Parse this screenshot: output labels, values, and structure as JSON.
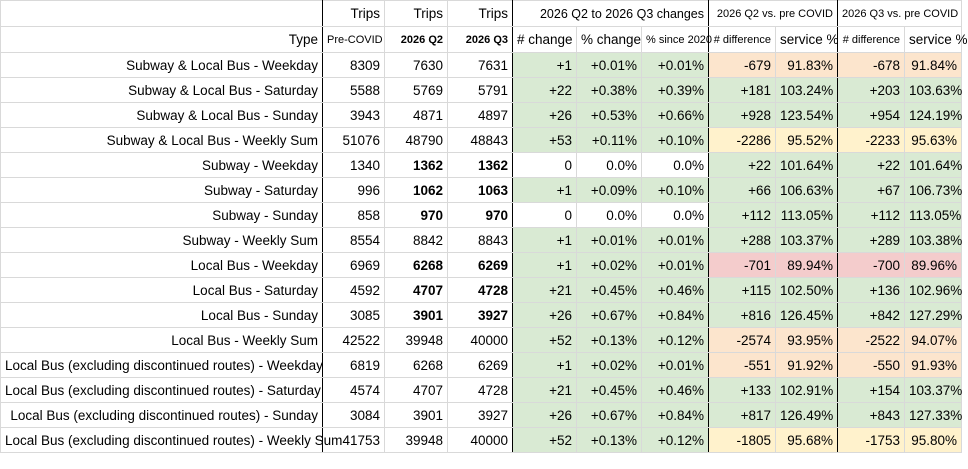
{
  "header": {
    "row1": {
      "trips_a": "Trips",
      "trips_b": "Trips",
      "trips_c": "Trips",
      "changes": "2026 Q2 to 2026 Q3 changes",
      "q2_vs": "2026 Q2 vs. pre COVID",
      "q3_vs": "2026 Q3 vs. pre COVID"
    },
    "row2": {
      "type": "Type",
      "pre": "Pre-COVID",
      "q2": "2026 Q2",
      "q3": "2026 Q3",
      "num_change": "# change",
      "pct_change": "% change",
      "since2020": "% since 2020",
      "q2_diff": "# difference",
      "q2_svc": "service %",
      "q3_diff": "# difference",
      "q3_svc": "service %"
    }
  },
  "colors": {
    "green": "#d9ead3",
    "orange": "#fce5cd",
    "yellow": "#fff2cc",
    "pink": "#f4cccc"
  },
  "rows": [
    {
      "type": "Subway & Local Bus - Weekday",
      "pre": "8309",
      "q2": "7630",
      "q3": "7631",
      "chg": "+1",
      "pct": "+0.01%",
      "s2020": "+0.01%",
      "q2d": "-679",
      "q2s": "91.83%",
      "q3d": "-678",
      "q3s": "91.84%"
    },
    {
      "type": "Subway & Local Bus - Saturday",
      "pre": "5588",
      "q2": "5769",
      "q3": "5791",
      "chg": "+22",
      "pct": "+0.38%",
      "s2020": "+0.39%",
      "q2d": "+181",
      "q2s": "103.24%",
      "q3d": "+203",
      "q3s": "103.63%"
    },
    {
      "type": "Subway & Local Bus - Sunday",
      "pre": "3943",
      "q2": "4871",
      "q3": "4897",
      "chg": "+26",
      "pct": "+0.53%",
      "s2020": "+0.66%",
      "q2d": "+928",
      "q2s": "123.54%",
      "q3d": "+954",
      "q3s": "124.19%"
    },
    {
      "type": "Subway & Local Bus - Weekly Sum",
      "pre": "51076",
      "q2": "48790",
      "q3": "48843",
      "chg": "+53",
      "pct": "+0.11%",
      "s2020": "+0.10%",
      "q2d": "-2286",
      "q2s": "95.52%",
      "q3d": "-2233",
      "q3s": "95.63%"
    },
    {
      "type": "Subway - Weekday",
      "pre": "1340",
      "q2": "1362",
      "q3": "1362",
      "chg": "0",
      "pct": "0.0%",
      "s2020": "0.0%",
      "q2d": "+22",
      "q2s": "101.64%",
      "q3d": "+22",
      "q3s": "101.64%"
    },
    {
      "type": "Subway - Saturday",
      "pre": "996",
      "q2": "1062",
      "q3": "1063",
      "chg": "+1",
      "pct": "+0.09%",
      "s2020": "+0.10%",
      "q2d": "+66",
      "q2s": "106.63%",
      "q3d": "+67",
      "q3s": "106.73%"
    },
    {
      "type": "Subway - Sunday",
      "pre": "858",
      "q2": "970",
      "q3": "970",
      "chg": "0",
      "pct": "0.0%",
      "s2020": "0.0%",
      "q2d": "+112",
      "q2s": "113.05%",
      "q3d": "+112",
      "q3s": "113.05%"
    },
    {
      "type": "Subway - Weekly Sum",
      "pre": "8554",
      "q2": "8842",
      "q3": "8843",
      "chg": "+1",
      "pct": "+0.01%",
      "s2020": "+0.01%",
      "q2d": "+288",
      "q2s": "103.37%",
      "q3d": "+289",
      "q3s": "103.38%"
    },
    {
      "type": "Local Bus - Weekday",
      "pre": "6969",
      "q2": "6268",
      "q3": "6269",
      "chg": "+1",
      "pct": "+0.02%",
      "s2020": "+0.01%",
      "q2d": "-701",
      "q2s": "89.94%",
      "q3d": "-700",
      "q3s": "89.96%"
    },
    {
      "type": "Local Bus - Saturday",
      "pre": "4592",
      "q2": "4707",
      "q3": "4728",
      "chg": "+21",
      "pct": "+0.45%",
      "s2020": "+0.46%",
      "q2d": "+115",
      "q2s": "102.50%",
      "q3d": "+136",
      "q3s": "102.96%"
    },
    {
      "type": "Local Bus - Sunday",
      "pre": "3085",
      "q2": "3901",
      "q3": "3927",
      "chg": "+26",
      "pct": "+0.67%",
      "s2020": "+0.84%",
      "q2d": "+816",
      "q2s": "126.45%",
      "q3d": "+842",
      "q3s": "127.29%"
    },
    {
      "type": "Local Bus - Weekly Sum",
      "pre": "42522",
      "q2": "39948",
      "q3": "40000",
      "chg": "+52",
      "pct": "+0.13%",
      "s2020": "+0.12%",
      "q2d": "-2574",
      "q2s": "93.95%",
      "q3d": "-2522",
      "q3s": "94.07%"
    },
    {
      "type": "Local Bus (excluding discontinued routes) - Weekday",
      "pre": "6819",
      "q2": "6268",
      "q3": "6269",
      "chg": "+1",
      "pct": "+0.02%",
      "s2020": "+0.01%",
      "q2d": "-551",
      "q2s": "91.92%",
      "q3d": "-550",
      "q3s": "91.93%"
    },
    {
      "type": "Local Bus (excluding discontinued routes) - Saturday",
      "pre": "4574",
      "q2": "4707",
      "q3": "4728",
      "chg": "+21",
      "pct": "+0.45%",
      "s2020": "+0.46%",
      "q2d": "+133",
      "q2s": "102.91%",
      "q3d": "+154",
      "q3s": "103.37%"
    },
    {
      "type": "Local Bus (excluding discontinued routes) - Sunday",
      "pre": "3084",
      "q2": "3901",
      "q3": "3927",
      "chg": "+26",
      "pct": "+0.67%",
      "s2020": "+0.84%",
      "q2d": "+817",
      "q2s": "126.49%",
      "q3d": "+843",
      "q3s": "127.33%"
    },
    {
      "type": "Local Bus (excluding discontinued routes) - Weekly Sum",
      "pre": "41753",
      "q2": "39948",
      "q3": "40000",
      "chg": "+52",
      "pct": "+0.13%",
      "s2020": "+0.12%",
      "q2d": "-1805",
      "q2s": "95.68%",
      "q3d": "-1753",
      "q3s": "95.80%"
    }
  ]
}
